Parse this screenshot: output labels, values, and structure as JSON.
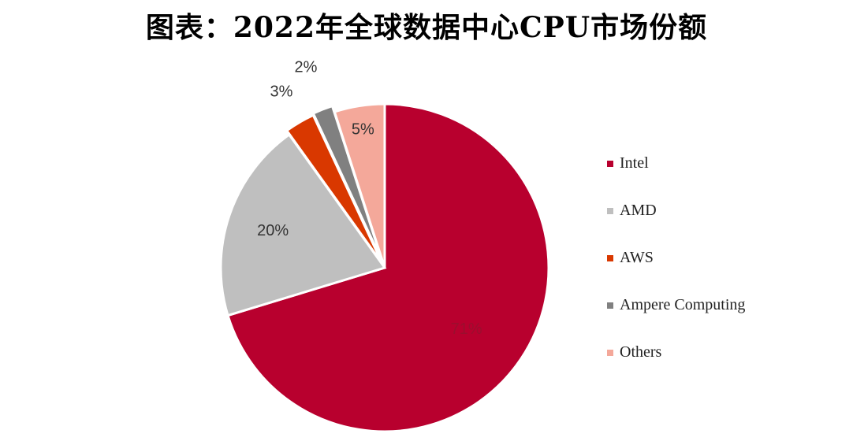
{
  "title": "图表：2022年全球数据中心CPU市场份额",
  "chart_data": {
    "type": "pie",
    "categories": [
      "Intel",
      "AMD",
      "AWS",
      "Ampere Computing",
      "Others"
    ],
    "values": [
      71,
      20,
      3,
      2,
      5
    ],
    "data_labels": [
      "71%",
      "20%",
      "3%",
      "2%",
      "5%"
    ],
    "colors": [
      "#B8002E",
      "#BFBFBF",
      "#D93800",
      "#808080",
      "#F4A89A"
    ],
    "label_colors": [
      "#9B0E2E",
      "#333333",
      "#333333",
      "#333333",
      "#333333"
    ],
    "legend_position": "right"
  }
}
